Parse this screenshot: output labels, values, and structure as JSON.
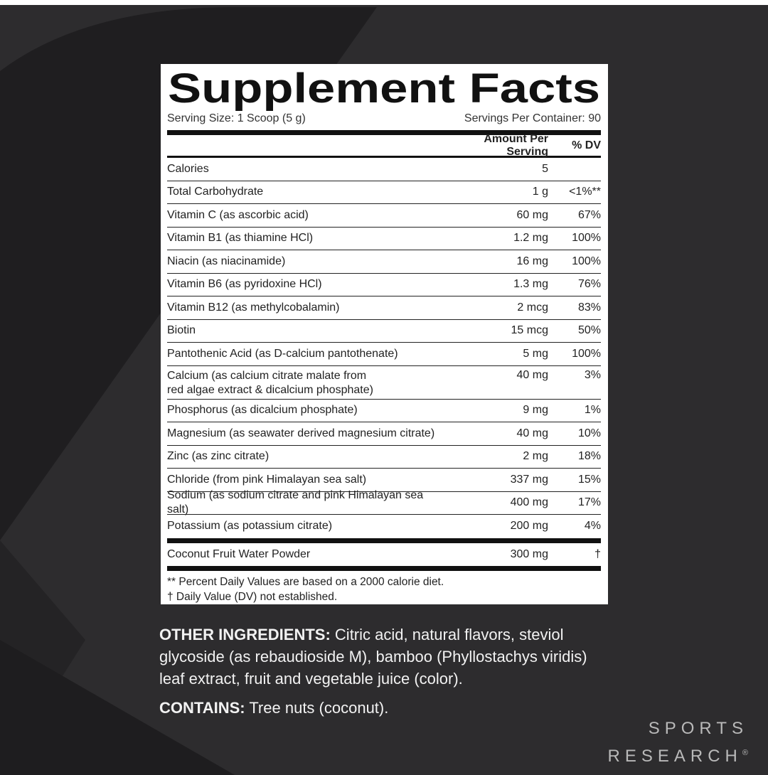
{
  "header": {
    "title": "Supplement Facts",
    "serving_size": "Serving Size: 1 Scoop (5 g)",
    "servings_per_container": "Servings Per Container: 90"
  },
  "table": {
    "columns": [
      "Amount Per Serving",
      "% DV"
    ],
    "rows": [
      [
        "Calories",
        "5",
        ""
      ],
      [
        "Total Carbohydrate",
        "1 g",
        "<1%**"
      ],
      [
        "Vitamin C (as ascorbic acid)",
        "60 mg",
        "67%"
      ],
      [
        "Vitamin B1 (as thiamine HCl)",
        "1.2 mg",
        "100%"
      ],
      [
        "Niacin (as niacinamide)",
        "16 mg",
        "100%"
      ],
      [
        "Vitamin B6 (as pyridoxine HCl)",
        "1.3 mg",
        "76%"
      ],
      [
        "Vitamin B12 (as methylcobalamin)",
        "2 mcg",
        "83%"
      ],
      [
        "Biotin",
        "15 mcg",
        "50%"
      ],
      [
        "Pantothenic Acid (as D-calcium pantothenate)",
        "5 mg",
        "100%"
      ],
      [
        "Calcium (as calcium citrate malate from\nred algae extract & dicalcium phosphate)",
        "40 mg",
        "3%"
      ],
      [
        "Phosphorus (as dicalcium phosphate)",
        "9 mg",
        "1%"
      ],
      [
        "Magnesium (as seawater derived magnesium citrate)",
        "40 mg",
        "10%"
      ],
      [
        "Zinc (as zinc citrate)",
        "2 mg",
        "18%"
      ],
      [
        "Chloride (from pink Himalayan sea salt)",
        "337 mg",
        "15%"
      ],
      [
        "Sodium (as sodium citrate and pink Himalayan sea salt)",
        "400 mg",
        "17%"
      ],
      [
        "Potassium (as potassium citrate)",
        "200 mg",
        "4%"
      ]
    ],
    "extra_rows": [
      [
        "Coconut Fruit Water Powder",
        "300 mg",
        "†"
      ]
    ],
    "footnotes": [
      "** Percent Daily Values are based on a 2000 calorie diet.",
      "†  Daily Value (DV) not established."
    ]
  },
  "other_ingredients": {
    "label": "OTHER INGREDIENTS:",
    "text": "Citric acid, natural flavors, steviol glycoside (as rebaudioside M), bamboo (Phyllostachys viridis) leaf extract, fruit and vegetable juice (color)."
  },
  "contains": {
    "label": "CONTAINS:",
    "text": "Tree nuts (coconut)."
  },
  "brand": {
    "line1": "SPORTS",
    "line2": "RESEARCH",
    "mark": "®"
  }
}
